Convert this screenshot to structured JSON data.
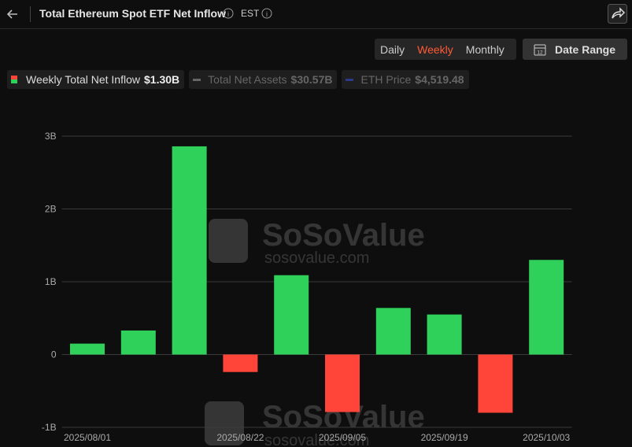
{
  "header": {
    "title": "Total Ethereum Spot ETF Net Inflow",
    "timezone": "EST"
  },
  "controls": {
    "periods": [
      "Daily",
      "Weekly",
      "Monthly"
    ],
    "active_period": "Weekly",
    "date_range": "Date Range"
  },
  "legend": [
    {
      "name": "Weekly Total Net Inflow",
      "value": "$1.30B",
      "active": true
    },
    {
      "name": "Total Net Assets",
      "value": "$30.57B",
      "active": false
    },
    {
      "name": "ETH Price",
      "value": "$4,519.48",
      "active": false
    }
  ],
  "watermark": {
    "brand": "SoSoValue",
    "site": "sosovalue.com"
  },
  "chart_data": {
    "type": "bar",
    "categories": [
      "2025/08/01",
      null,
      null,
      "2025/08/22",
      null,
      "2025/09/05",
      null,
      "2025/09/19",
      null,
      "2025/10/03"
    ],
    "values": [
      0.15,
      0.33,
      2.86,
      -0.24,
      1.09,
      -0.79,
      0.64,
      0.55,
      -0.8,
      1.3
    ],
    "colors": {
      "positive": "#2fd15a",
      "negative": "#ff4539"
    },
    "ylim": [
      -1,
      3
    ],
    "yticks": [
      {
        "value": -1,
        "label": "-1B"
      },
      0,
      {
        "value": 1,
        "label": "1B"
      },
      {
        "value": 2,
        "label": "2B"
      },
      {
        "value": 3,
        "label": "3B"
      }
    ],
    "grid": true
  }
}
